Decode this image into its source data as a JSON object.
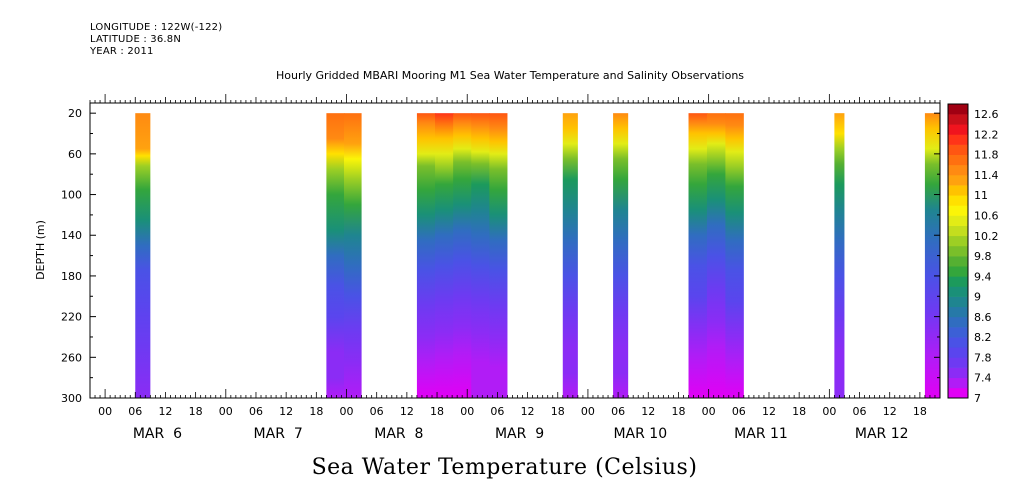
{
  "header": {
    "longitude": "LONGITUDE : 122W(-122)",
    "latitude": "LATITUDE : 36.8N",
    "year": "YEAR : 2011"
  },
  "chart_data": {
    "type": "heatmap",
    "title": "Hourly Gridded MBARI Mooring M1 Sea Water Temperature and Salinity Observations",
    "bottom_title": "Sea Water Temperature (Celsius)",
    "ylabel": "DEPTH (m)",
    "ylim": [
      300,
      10
    ],
    "y_ticks": [
      20,
      60,
      100,
      140,
      180,
      220,
      260,
      300
    ],
    "x_hour_ticks": [
      "00",
      "06",
      "12",
      "18",
      "00",
      "06",
      "12",
      "18",
      "00",
      "06",
      "12",
      "18",
      "00",
      "06",
      "12",
      "18",
      "00",
      "06",
      "12",
      "18",
      "00",
      "06",
      "12",
      "18",
      "00",
      "06",
      "12",
      "18"
    ],
    "x_day_labels": [
      "MAR  6",
      "MAR  7",
      "MAR  8",
      "MAR  9",
      "MAR 10",
      "MAR 11",
      "MAR 12"
    ],
    "x_start": "2011-03-05 21:00",
    "x_end": "2011-03-12 22:00",
    "colorbar": {
      "labels": [
        "12.6",
        "12.2",
        "11.8",
        "11.4",
        "11",
        "10.6",
        "10.2",
        "9.8",
        "9.4",
        "9",
        "8.6",
        "8.2",
        "7.8",
        "7.4",
        "7"
      ],
      "min": 7.0,
      "max": 12.8,
      "step": 0.2,
      "colors": [
        "#e100f5",
        "#b11cf6",
        "#8b2cf5",
        "#6e3af2",
        "#5a45ee",
        "#4a52e6",
        "#3c60d6",
        "#306dc0",
        "#2679a8",
        "#1f8590",
        "#1a9078",
        "#1c9a5c",
        "#34a63c",
        "#55b032",
        "#7abf2a",
        "#9dcf24",
        "#c3de1e",
        "#e2ec16",
        "#fbf508",
        "#ffe100",
        "#ffc300",
        "#ffa20f",
        "#ff8a12",
        "#ff7010",
        "#ff5612",
        "#ff3418",
        "#f0141e",
        "#c8101a",
        "#a00012"
      ],
      "note": "colors listed from coldest (7) to warmest (12.8)"
    },
    "segments": [
      {
        "start": "2011-03-06 06:00",
        "end": "2011-03-06 09:00",
        "columns": [
          {
            "bands": [
              [
                20,
                11.5
              ],
              [
                55,
                11.3
              ],
              [
                62,
                10.8
              ],
              [
                72,
                10.2
              ],
              [
                95,
                9.5
              ],
              [
                125,
                9.0
              ],
              [
                150,
                8.6
              ],
              [
                175,
                8.2
              ],
              [
                210,
                7.9
              ],
              [
                250,
                7.7
              ],
              [
                300,
                7.4
              ]
            ]
          }
        ]
      },
      {
        "start": "2011-03-07 20:00",
        "end": "2011-03-08 03:00",
        "columns": [
          {
            "bands": [
              [
                20,
                11.7
              ],
              [
                45,
                11.4
              ],
              [
                60,
                10.9
              ],
              [
                75,
                10.2
              ],
              [
                100,
                9.5
              ],
              [
                135,
                9.0
              ],
              [
                160,
                8.6
              ],
              [
                190,
                8.2
              ],
              [
                220,
                7.9
              ],
              [
                255,
                7.6
              ],
              [
                280,
                7.4
              ],
              [
                300,
                7.3
              ]
            ]
          },
          {
            "bands": [
              [
                20,
                11.7
              ],
              [
                50,
                11.3
              ],
              [
                65,
                10.7
              ],
              [
                85,
                10.0
              ],
              [
                110,
                9.4
              ],
              [
                140,
                8.9
              ],
              [
                170,
                8.5
              ],
              [
                200,
                8.1
              ],
              [
                235,
                7.8
              ],
              [
                265,
                7.5
              ],
              [
                300,
                7.3
              ]
            ]
          }
        ]
      },
      {
        "start": "2011-03-08 14:00",
        "end": "2011-03-09 08:00",
        "columns": [
          {
            "bands": [
              [
                20,
                11.9
              ],
              [
                30,
                11.6
              ],
              [
                45,
                11.1
              ],
              [
                60,
                10.5
              ],
              [
                72,
                9.9
              ],
              [
                95,
                9.4
              ],
              [
                120,
                9.0
              ],
              [
                145,
                8.6
              ],
              [
                175,
                8.2
              ],
              [
                210,
                7.8
              ],
              [
                240,
                7.5
              ],
              [
                265,
                7.3
              ],
              [
                300,
                7.1
              ]
            ]
          },
          {
            "bands": [
              [
                20,
                12.0
              ],
              [
                30,
                11.7
              ],
              [
                45,
                11.2
              ],
              [
                60,
                10.6
              ],
              [
                72,
                10.0
              ],
              [
                90,
                9.4
              ],
              [
                115,
                9.0
              ],
              [
                140,
                8.6
              ],
              [
                170,
                8.2
              ],
              [
                205,
                7.8
              ],
              [
                235,
                7.5
              ],
              [
                260,
                7.3
              ],
              [
                300,
                7.1
              ]
            ]
          },
          {
            "bands": [
              [
                20,
                11.8
              ],
              [
                30,
                11.5
              ],
              [
                42,
                11.0
              ],
              [
                55,
                10.5
              ],
              [
                68,
                9.9
              ],
              [
                85,
                9.4
              ],
              [
                110,
                9.0
              ],
              [
                135,
                8.6
              ],
              [
                165,
                8.2
              ],
              [
                200,
                7.8
              ],
              [
                230,
                7.5
              ],
              [
                255,
                7.3
              ],
              [
                300,
                7.1
              ]
            ]
          },
          {
            "bands": [
              [
                20,
                11.9
              ],
              [
                32,
                11.5
              ],
              [
                45,
                11.0
              ],
              [
                58,
                10.4
              ],
              [
                70,
                9.8
              ],
              [
                90,
                9.3
              ],
              [
                115,
                8.9
              ],
              [
                140,
                8.5
              ],
              [
                170,
                8.1
              ],
              [
                205,
                7.8
              ],
              [
                235,
                7.5
              ],
              [
                265,
                7.3
              ],
              [
                300,
                7.2
              ]
            ]
          },
          {
            "bands": [
              [
                20,
                11.8
              ],
              [
                35,
                11.5
              ],
              [
                48,
                11.1
              ],
              [
                60,
                10.5
              ],
              [
                75,
                9.9
              ],
              [
                95,
                9.4
              ],
              [
                120,
                9.0
              ],
              [
                145,
                8.6
              ],
              [
                175,
                8.2
              ],
              [
                210,
                7.8
              ],
              [
                240,
                7.5
              ],
              [
                270,
                7.3
              ],
              [
                300,
                7.2
              ]
            ]
          }
        ]
      },
      {
        "start": "2011-03-09 19:00",
        "end": "2011-03-09 22:00",
        "columns": [
          {
            "bands": [
              [
                20,
                11.3
              ],
              [
                35,
                11.0
              ],
              [
                50,
                10.4
              ],
              [
                65,
                9.8
              ],
              [
                85,
                9.3
              ],
              [
                115,
                8.8
              ],
              [
                145,
                8.4
              ],
              [
                180,
                8.0
              ],
              [
                215,
                7.8
              ],
              [
                250,
                7.6
              ],
              [
                275,
                7.4
              ],
              [
                300,
                7.2
              ]
            ]
          }
        ]
      },
      {
        "start": "2011-03-10 05:00",
        "end": "2011-03-10 08:00",
        "columns": [
          {
            "bands": [
              [
                20,
                11.6
              ],
              [
                35,
                11.2
              ],
              [
                50,
                10.5
              ],
              [
                65,
                9.9
              ],
              [
                85,
                9.4
              ],
              [
                115,
                8.9
              ],
              [
                145,
                8.4
              ],
              [
                180,
                8.0
              ],
              [
                215,
                7.8
              ],
              [
                250,
                7.6
              ],
              [
                275,
                7.4
              ],
              [
                300,
                7.2
              ]
            ]
          }
        ]
      },
      {
        "start": "2011-03-10 20:00",
        "end": "2011-03-11 07:00",
        "columns": [
          {
            "bands": [
              [
                20,
                11.8
              ],
              [
                30,
                11.5
              ],
              [
                40,
                11.1
              ],
              [
                55,
                10.5
              ],
              [
                70,
                9.9
              ],
              [
                90,
                9.4
              ],
              [
                115,
                9.0
              ],
              [
                140,
                8.6
              ],
              [
                170,
                8.2
              ],
              [
                200,
                7.9
              ],
              [
                235,
                7.6
              ],
              [
                260,
                7.3
              ],
              [
                300,
                7.1
              ]
            ]
          },
          {
            "bands": [
              [
                20,
                11.7
              ],
              [
                30,
                11.4
              ],
              [
                40,
                11.0
              ],
              [
                50,
                10.5
              ],
              [
                62,
                10.0
              ],
              [
                80,
                9.4
              ],
              [
                105,
                9.0
              ],
              [
                130,
                8.5
              ],
              [
                160,
                8.1
              ],
              [
                195,
                7.8
              ],
              [
                225,
                7.5
              ],
              [
                250,
                7.2
              ],
              [
                300,
                7.0
              ]
            ]
          },
          {
            "bands": [
              [
                20,
                11.7
              ],
              [
                32,
                11.4
              ],
              [
                45,
                11.0
              ],
              [
                58,
                10.5
              ],
              [
                72,
                10.0
              ],
              [
                92,
                9.5
              ],
              [
                118,
                9.0
              ],
              [
                145,
                8.6
              ],
              [
                175,
                8.2
              ],
              [
                205,
                7.9
              ],
              [
                240,
                7.6
              ],
              [
                265,
                7.3
              ],
              [
                300,
                7.1
              ]
            ]
          }
        ]
      },
      {
        "start": "2011-03-12 01:00",
        "end": "2011-03-12 03:00",
        "columns": [
          {
            "bands": [
              [
                20,
                11.3
              ],
              [
                40,
                10.8
              ],
              [
                55,
                10.2
              ],
              [
                70,
                9.7
              ],
              [
                90,
                9.3
              ],
              [
                115,
                8.9
              ],
              [
                145,
                8.5
              ],
              [
                180,
                8.1
              ],
              [
                220,
                7.8
              ],
              [
                255,
                7.6
              ],
              [
                300,
                7.4
              ]
            ]
          }
        ]
      },
      {
        "start": "2011-03-12 19:00",
        "end": "2011-03-12 22:00",
        "columns": [
          {
            "bands": [
              [
                20,
                11.4
              ],
              [
                35,
                11.0
              ],
              [
                55,
                10.4
              ],
              [
                70,
                9.8
              ],
              [
                90,
                9.4
              ],
              [
                115,
                8.9
              ],
              [
                145,
                8.5
              ],
              [
                180,
                8.1
              ],
              [
                215,
                7.8
              ],
              [
                235,
                7.4
              ],
              [
                260,
                7.2
              ],
              [
                300,
                7.0
              ]
            ]
          }
        ]
      }
    ]
  }
}
